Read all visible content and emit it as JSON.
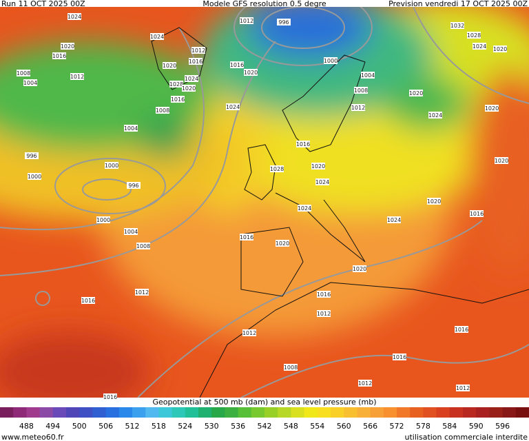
{
  "header": {
    "run": "Run 11 OCT 2025 00Z",
    "model": "Modele GFS resolution 0.5 degre",
    "forecast": "Prevision vendredi 17 OCT 2025 00Z"
  },
  "isobar_labels": [
    "1024",
    "1012",
    "996",
    "1032",
    "1028",
    "1024",
    "1012",
    "1020",
    "1016",
    "1024",
    "1020",
    "1016",
    "1016",
    "1020",
    "1000",
    "1020",
    "1008",
    "1012",
    "1004",
    "1024",
    "1028",
    "1020",
    "1004",
    "1008",
    "1020",
    "1016",
    "1024",
    "1012",
    "1020",
    "1008",
    "1024",
    "1004",
    "1016",
    "996",
    "1020",
    "1028",
    "1020",
    "1000",
    "1000",
    "996",
    "1024",
    "1024",
    "1020",
    "1016",
    "1024",
    "1000",
    "1004",
    "1016",
    "1020",
    "1008",
    "1020",
    "1016",
    "1012",
    "1016",
    "1012",
    "1016",
    "1012",
    "1016",
    "1008",
    "1012",
    "1012",
    "1016"
  ],
  "footer": {
    "caption": "Geopotential at 500 mb (dam) and sea level pressure (mb)",
    "site": "www.meteo60.fr",
    "notice": "utilisation commerciale interdite"
  },
  "legend": {
    "labels": [
      "488",
      "494",
      "500",
      "506",
      "512",
      "518",
      "524",
      "530",
      "536",
      "542",
      "548",
      "554",
      "560",
      "566",
      "572",
      "578",
      "584",
      "590",
      "596"
    ],
    "colors": [
      "#7a1f5e",
      "#8e2a78",
      "#a03a8c",
      "#8a4aa6",
      "#6a4ab8",
      "#5046b8",
      "#3f4fc4",
      "#2f5fd0",
      "#2870e0",
      "#2a88ea",
      "#3ba0ee",
      "#52b8f0",
      "#3cc8d8",
      "#2ec8b8",
      "#22c098",
      "#20b070",
      "#28a848",
      "#3cb040",
      "#58c038",
      "#78c830",
      "#98d028",
      "#b8d828",
      "#d8e020",
      "#f0e818",
      "#f8e020",
      "#f8d028",
      "#f8c030",
      "#f8b038",
      "#f8a038",
      "#f89030",
      "#f07828",
      "#e86020",
      "#e05020",
      "#d84020",
      "#c83020",
      "#b82820",
      "#a82020",
      "#982018",
      "#881818",
      "#781010"
    ]
  }
}
